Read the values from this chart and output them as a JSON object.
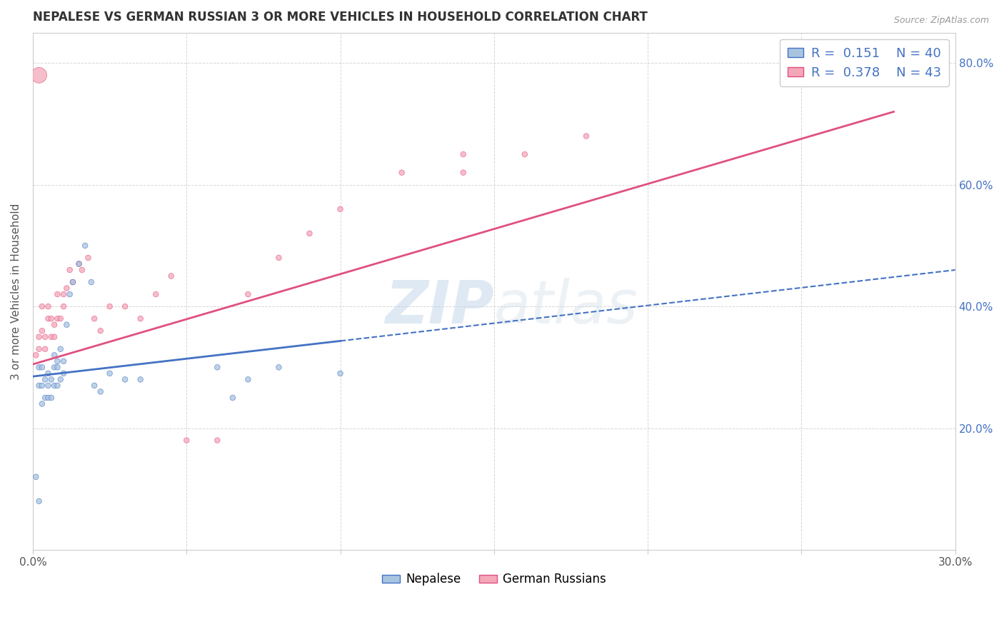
{
  "title": "NEPALESE VS GERMAN RUSSIAN 3 OR MORE VEHICLES IN HOUSEHOLD CORRELATION CHART",
  "source": "Source: ZipAtlas.com",
  "ylabel": "3 or more Vehicles in Household",
  "xlim": [
    0.0,
    0.3
  ],
  "ylim": [
    0.0,
    0.85
  ],
  "x_ticks": [
    0.0,
    0.05,
    0.1,
    0.15,
    0.2,
    0.25,
    0.3
  ],
  "y_ticks": [
    0.0,
    0.2,
    0.4,
    0.6,
    0.8
  ],
  "watermark": "ZIPatlas",
  "legend_R_nepalese": "R =  0.151",
  "legend_N_nepalese": "N = 40",
  "legend_R_german": "R =  0.378",
  "legend_N_german": "N = 43",
  "nepalese_color": "#a8c4e0",
  "german_color": "#f4a7b9",
  "nepalese_line_color": "#4472c4",
  "german_line_color": "#e05080",
  "nepalese_scatter_x": [
    0.001,
    0.002,
    0.002,
    0.003,
    0.003,
    0.003,
    0.004,
    0.004,
    0.005,
    0.005,
    0.005,
    0.006,
    0.006,
    0.007,
    0.007,
    0.007,
    0.008,
    0.008,
    0.008,
    0.009,
    0.009,
    0.01,
    0.01,
    0.011,
    0.012,
    0.013,
    0.015,
    0.017,
    0.019,
    0.02,
    0.022,
    0.025,
    0.03,
    0.035,
    0.06,
    0.065,
    0.07,
    0.08,
    0.1,
    0.002
  ],
  "nepalese_scatter_y": [
    0.12,
    0.27,
    0.3,
    0.24,
    0.27,
    0.3,
    0.25,
    0.28,
    0.25,
    0.27,
    0.29,
    0.25,
    0.28,
    0.27,
    0.3,
    0.32,
    0.27,
    0.3,
    0.31,
    0.28,
    0.33,
    0.29,
    0.31,
    0.37,
    0.42,
    0.44,
    0.47,
    0.5,
    0.44,
    0.27,
    0.26,
    0.29,
    0.28,
    0.28,
    0.3,
    0.25,
    0.28,
    0.3,
    0.29,
    0.08
  ],
  "nepalese_scatter_s": [
    30,
    30,
    30,
    30,
    30,
    30,
    30,
    30,
    30,
    30,
    30,
    30,
    30,
    30,
    30,
    30,
    30,
    30,
    30,
    30,
    30,
    30,
    30,
    30,
    30,
    30,
    30,
    30,
    30,
    30,
    30,
    30,
    30,
    30,
    30,
    30,
    30,
    30,
    30,
    30
  ],
  "german_scatter_x": [
    0.001,
    0.002,
    0.002,
    0.003,
    0.003,
    0.004,
    0.004,
    0.005,
    0.005,
    0.006,
    0.006,
    0.007,
    0.007,
    0.008,
    0.008,
    0.009,
    0.01,
    0.01,
    0.011,
    0.012,
    0.013,
    0.015,
    0.016,
    0.018,
    0.02,
    0.022,
    0.025,
    0.03,
    0.035,
    0.04,
    0.045,
    0.05,
    0.06,
    0.07,
    0.08,
    0.09,
    0.1,
    0.12,
    0.14,
    0.16,
    0.18,
    0.002,
    0.14
  ],
  "german_scatter_y": [
    0.32,
    0.35,
    0.33,
    0.36,
    0.4,
    0.33,
    0.35,
    0.38,
    0.4,
    0.35,
    0.38,
    0.35,
    0.37,
    0.38,
    0.42,
    0.38,
    0.4,
    0.42,
    0.43,
    0.46,
    0.44,
    0.47,
    0.46,
    0.48,
    0.38,
    0.36,
    0.4,
    0.4,
    0.38,
    0.42,
    0.45,
    0.18,
    0.18,
    0.42,
    0.48,
    0.52,
    0.56,
    0.62,
    0.65,
    0.65,
    0.68,
    0.78,
    0.62
  ],
  "german_scatter_s": [
    30,
    30,
    30,
    30,
    30,
    30,
    30,
    30,
    30,
    30,
    30,
    30,
    30,
    30,
    30,
    30,
    30,
    30,
    30,
    30,
    30,
    30,
    30,
    30,
    30,
    30,
    30,
    30,
    30,
    30,
    30,
    30,
    30,
    30,
    30,
    30,
    30,
    30,
    30,
    30,
    30,
    250,
    30
  ],
  "nepalese_trendline_x": [
    0.0,
    0.3
  ],
  "nepalese_trendline_y": [
    0.285,
    0.46
  ],
  "german_trendline_x": [
    0.0,
    0.28
  ],
  "german_trendline_y": [
    0.305,
    0.72
  ],
  "background_color": "#ffffff",
  "grid_color": "#cccccc"
}
